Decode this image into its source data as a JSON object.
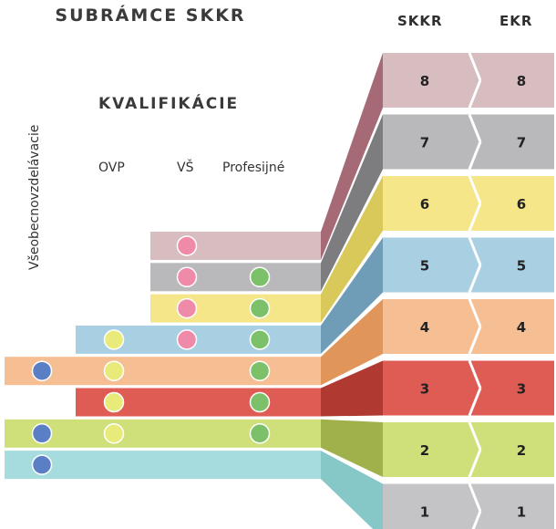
{
  "title": "SUBRÁMCE SKKR",
  "subtitle": "KVALIFIKÁCIE",
  "columns": {
    "skkr": "SKKR",
    "ekr": "EKR"
  },
  "qualification_columns": {
    "ovp": "OVP",
    "vs": "VŠ",
    "professional": "Profesijné"
  },
  "general_education_label": "Všeobecnovzdelávacie",
  "levels": [
    {
      "skkr": "8",
      "ekr": "8",
      "color": "#d7bcc0",
      "dark": "#a56a76"
    },
    {
      "skkr": "7",
      "ekr": "7",
      "color": "#b9b9bb",
      "dark": "#7d7d80"
    },
    {
      "skkr": "6",
      "ekr": "6",
      "color": "#f5e68a",
      "dark": "#d8c95a"
    },
    {
      "skkr": "5",
      "ekr": "5",
      "color": "#a9cfe3",
      "dark": "#6f9db8"
    },
    {
      "skkr": "4",
      "ekr": "4",
      "color": "#f6bf93",
      "dark": "#e0955a"
    },
    {
      "skkr": "3",
      "ekr": "3",
      "color": "#df5c55",
      "dark": "#b03a32"
    },
    {
      "skkr": "2",
      "ekr": "2",
      "color": "#cfdf7a",
      "dark": "#a0b04a"
    },
    {
      "skkr": "1",
      "ekr": "1",
      "color": "#c4c4c7",
      "dark": "#86c7c7"
    }
  ],
  "bars": [
    {
      "level": "8",
      "color": "#d7bcc0",
      "dots": {
        "general": false,
        "ovp": false,
        "vs": true,
        "professional": false
      }
    },
    {
      "level": "7",
      "color": "#b9b9bb",
      "dots": {
        "general": false,
        "ovp": false,
        "vs": true,
        "professional": true
      }
    },
    {
      "level": "6",
      "color": "#f5e68a",
      "dots": {
        "general": false,
        "ovp": false,
        "vs": true,
        "professional": true
      }
    },
    {
      "level": "5",
      "color": "#a9cfe3",
      "dots": {
        "general": false,
        "ovp": true,
        "vs": true,
        "professional": true
      }
    },
    {
      "level": "4",
      "color": "#f6bf93",
      "dots": {
        "general": true,
        "ovp": true,
        "vs": false,
        "professional": true
      }
    },
    {
      "level": "3",
      "color": "#df5c55",
      "dots": {
        "general": false,
        "ovp": true,
        "vs": false,
        "professional": true
      }
    },
    {
      "level": "2",
      "color": "#cfdf7a",
      "dots": {
        "general": true,
        "ovp": true,
        "vs": false,
        "professional": true
      }
    },
    {
      "level": "1",
      "color": "#a6dcdd",
      "dots": {
        "general": true,
        "ovp": false,
        "vs": false,
        "professional": false
      }
    }
  ],
  "dot_colors": {
    "general": "#5b7fc4",
    "ovp": "#e8ea7a",
    "vs": "#ef8aa8",
    "professional": "#7cc06a"
  }
}
